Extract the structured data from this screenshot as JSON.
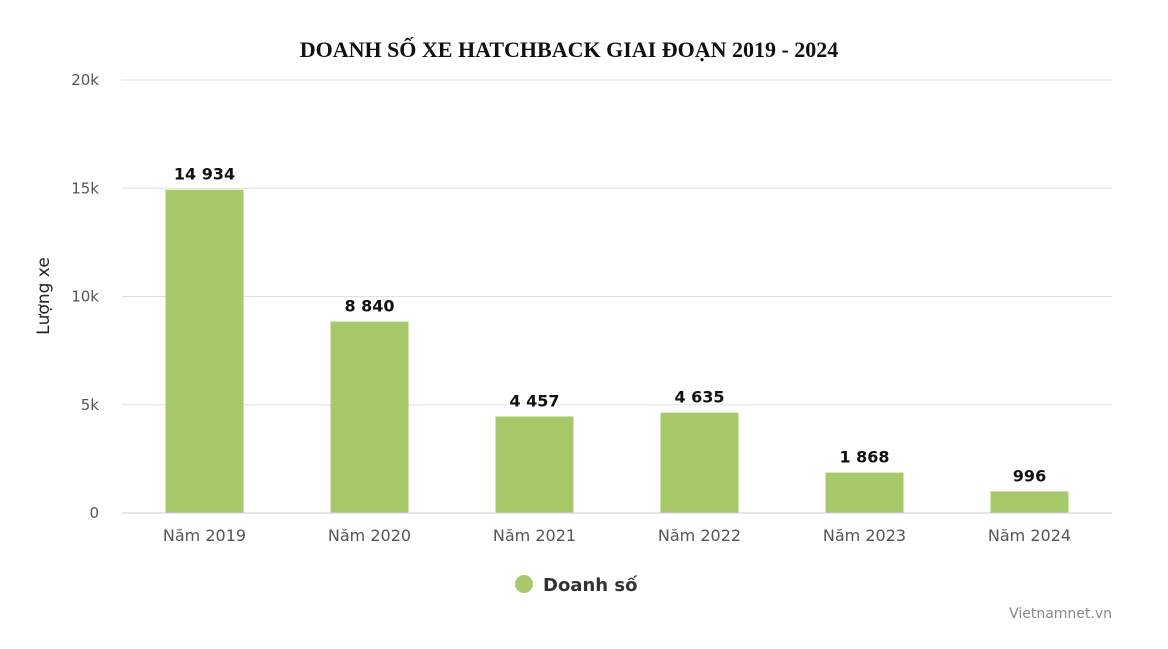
{
  "chart_data": {
    "type": "bar",
    "title": "DOANH SỐ XE HATCHBACK GIAI ĐOẠN 2019 - 2024",
    "ylabel": "Lượng xe",
    "xlabel": "",
    "categories": [
      "Năm 2019",
      "Năm 2020",
      "Năm 2021",
      "Năm 2022",
      "Năm 2023",
      "Năm 2024"
    ],
    "series": [
      {
        "name": "Doanh số",
        "values": [
          14934,
          8840,
          4457,
          4635,
          1868,
          996
        ]
      }
    ],
    "data_labels": [
      "14 934",
      "8 840",
      "4 457",
      "4 635",
      "1 868",
      "996"
    ],
    "yticks": [
      0,
      5000,
      10000,
      15000,
      20000
    ],
    "ytick_labels": [
      "0",
      "5k",
      "10k",
      "15k",
      "20k"
    ],
    "ylim": [
      0,
      20000
    ],
    "grid": true,
    "legend_position": "bottom-center",
    "colors": {
      "bar": "#a8c969",
      "grid": "#e0e0e0",
      "axis": "#c8cfdb"
    }
  },
  "credit": "Vietnamnet.vn"
}
